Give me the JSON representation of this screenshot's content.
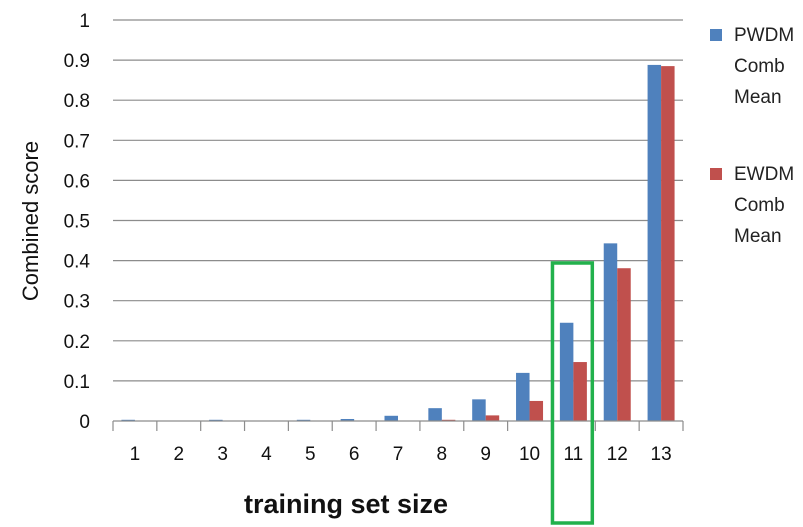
{
  "chart_data": {
    "type": "bar",
    "title": "",
    "xlabel": "training set size",
    "ylabel": "Combined score",
    "ylim": [
      0,
      1
    ],
    "yticks": [
      "0",
      "0.1",
      "0.2",
      "0.3",
      "0.4",
      "0.5",
      "0.6",
      "0.7",
      "0.8",
      "0.9",
      "1"
    ],
    "categories": [
      "1",
      "2",
      "3",
      "4",
      "5",
      "6",
      "7",
      "8",
      "9",
      "10",
      "11",
      "12",
      "13"
    ],
    "series": [
      {
        "name": "PWDM Comb Mean",
        "color": "#4f81bd",
        "values": [
          0.003,
          0.0,
          0.003,
          0.0,
          0.003,
          0.005,
          0.013,
          0.032,
          0.054,
          0.12,
          0.245,
          0.443,
          0.888
        ]
      },
      {
        "name": "EWDM Comb Mean",
        "color": "#c0504d",
        "values": [
          0.0,
          0.0,
          0.0,
          0.0,
          0.0,
          0.0,
          0.0,
          0.003,
          0.014,
          0.05,
          0.147,
          0.381,
          0.885
        ]
      }
    ],
    "grid": true,
    "legend_position": "right",
    "highlight": {
      "category": "11",
      "color": "#22b14c"
    }
  }
}
